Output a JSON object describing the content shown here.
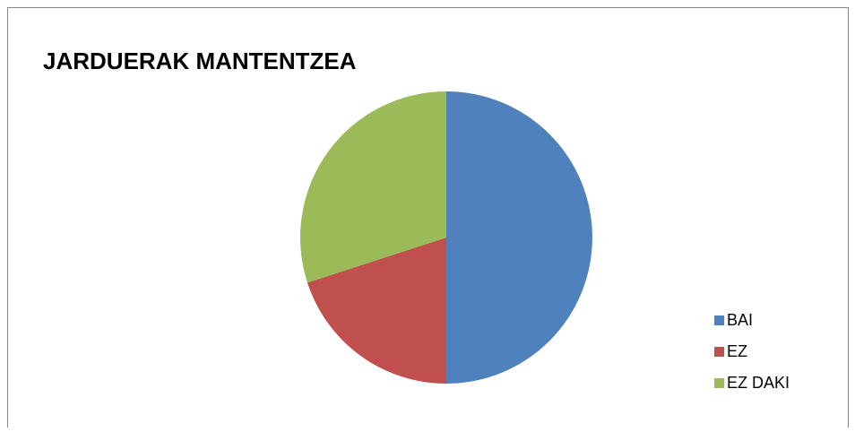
{
  "chart_data": {
    "type": "pie",
    "title": "JARDUERAK MANTENTZEA",
    "categories": [
      "BAI",
      "EZ",
      "EZ DAKI"
    ],
    "values": [
      50,
      20,
      30
    ],
    "colors": [
      "#4f81bd",
      "#c0504d",
      "#9bbb59"
    ],
    "legend": "right"
  }
}
